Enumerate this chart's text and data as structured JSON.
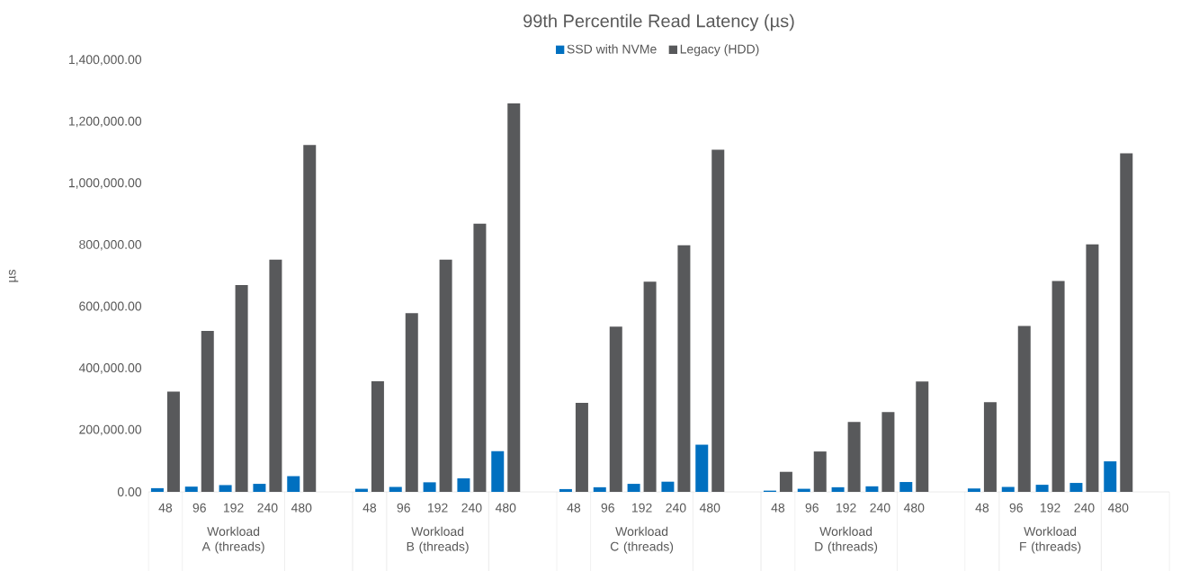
{
  "chart_data": {
    "type": "bar",
    "title": "99th Percentile Read Latency (µs)",
    "ylabel": "µs",
    "categories": [
      "48",
      "96",
      "192",
      "240",
      "480",
      null,
      "48",
      "96",
      "192",
      "240",
      "480",
      null,
      "48",
      "96",
      "192",
      "240",
      "480",
      null,
      "48",
      "96",
      "192",
      "240",
      "480",
      null,
      "48",
      "96",
      "192",
      "240",
      "480",
      null
    ],
    "series": [
      {
        "name": "SSD with NVMe",
        "color": "#0070c0",
        "values": [
          12000,
          17000,
          22000,
          26000,
          51000,
          null,
          10000,
          16000,
          31000,
          44000,
          132000,
          null,
          9000,
          15000,
          26000,
          33000,
          153000,
          null,
          4000,
          10000,
          15000,
          18000,
          32000,
          null,
          11000,
          16000,
          23000,
          29000,
          99000,
          null
        ]
      },
      {
        "name": "Legacy (HDD)",
        "color": "#58595b",
        "values": [
          325000,
          522000,
          671000,
          753000,
          1125000,
          null,
          359000,
          580000,
          753000,
          870000,
          1260000,
          null,
          289000,
          536000,
          682000,
          800000,
          1110000,
          null,
          65000,
          131000,
          227000,
          259000,
          358000,
          null,
          291000,
          538000,
          684000,
          803000,
          1098000,
          null
        ]
      }
    ],
    "annotations": [
      "Workload A (threads)",
      "Workload B (threads)",
      "Workload C (threads)",
      "Workload D (threads)",
      "Workload F (threads)"
    ],
    "ylim": [
      0,
      1400000
    ],
    "yticks": [
      {
        "value": 0,
        "label": "0.00"
      },
      {
        "value": 200000,
        "label": "200,000.00"
      },
      {
        "value": 400000,
        "label": "400,000.00"
      },
      {
        "value": 600000,
        "label": "600,000.00"
      },
      {
        "value": 800000,
        "label": "800,000.00"
      },
      {
        "value": 1000000,
        "label": "1,000,000.00"
      },
      {
        "value": 1200000,
        "label": "1,200,000.00"
      },
      {
        "value": 1400000,
        "label": "1,400,000.00"
      }
    ],
    "grid": false,
    "legend": "top"
  }
}
